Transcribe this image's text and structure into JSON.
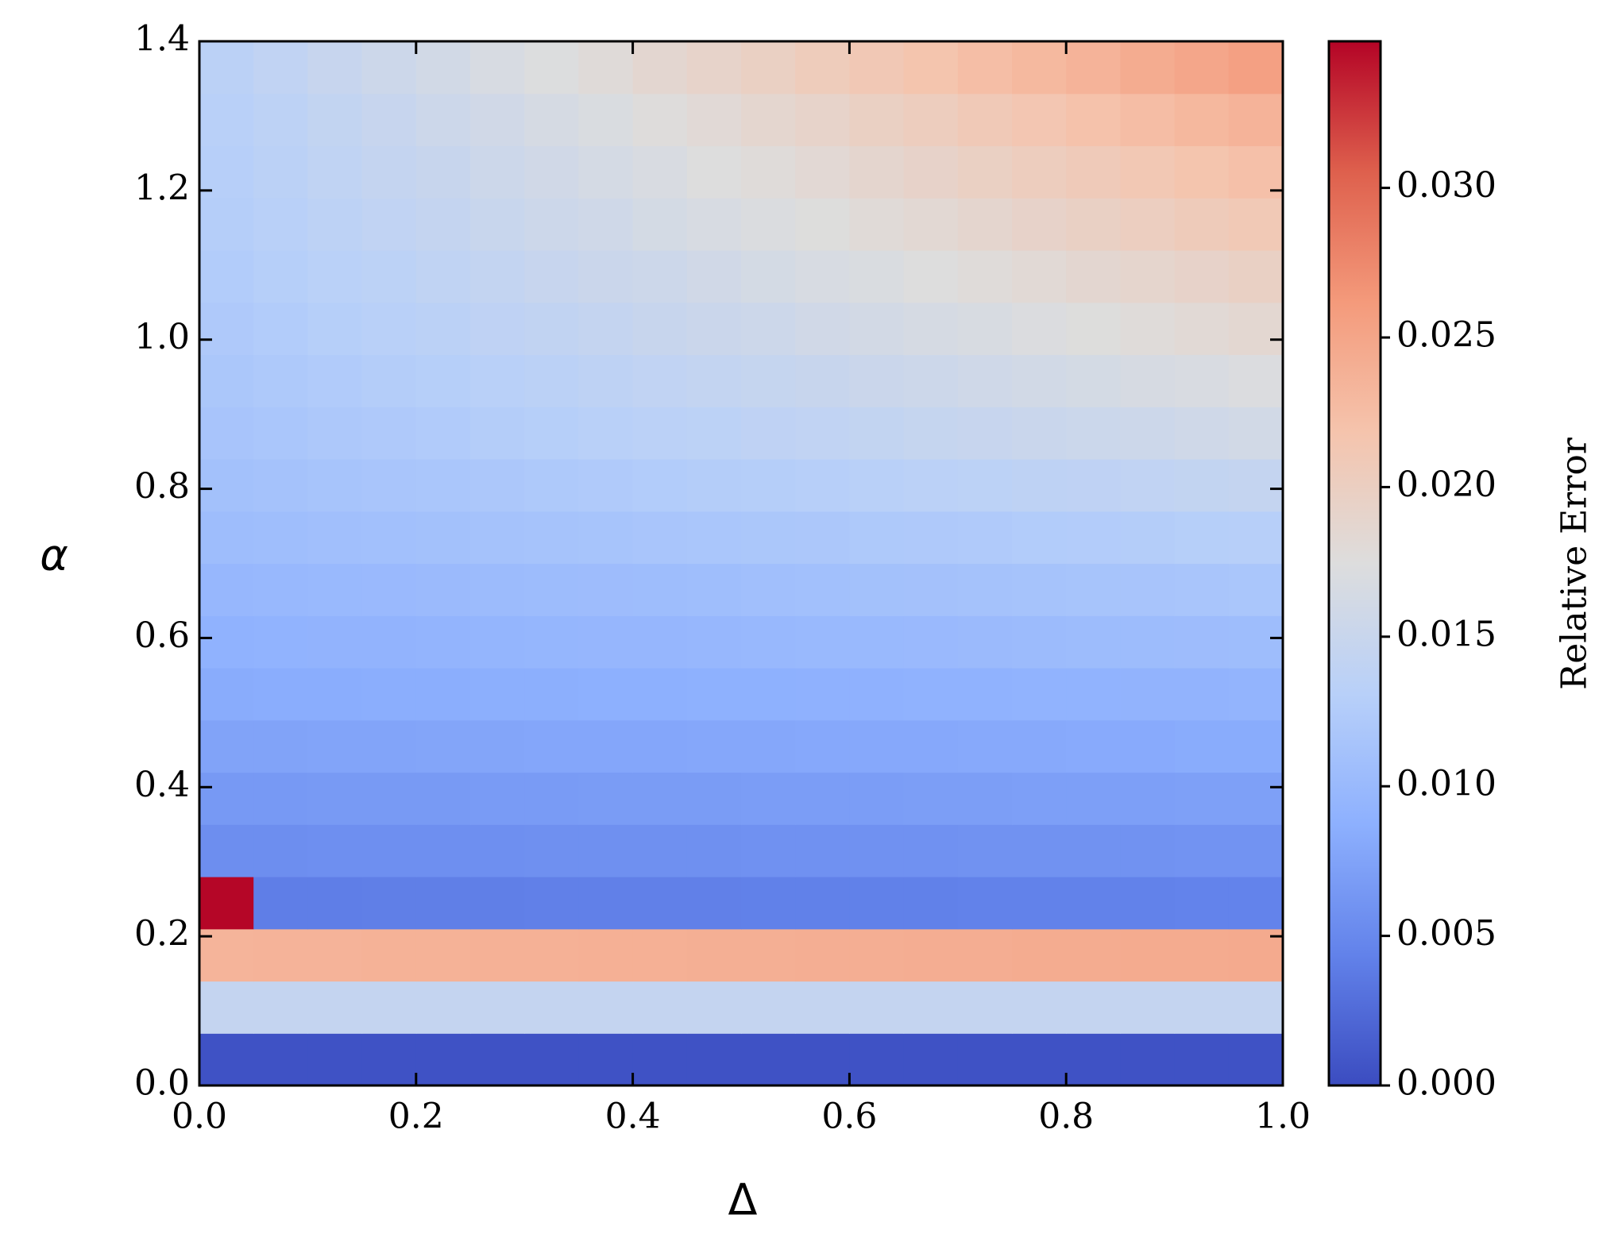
{
  "chart_data": {
    "type": "heatmap",
    "x_label": "Δ",
    "y_label": "α",
    "colorbar_label": "Relative Error",
    "colormap": "coolwarm",
    "xlim": [
      0,
      1
    ],
    "ylim": [
      0,
      1.4
    ],
    "xticks": [
      {
        "value": 0,
        "label": "0.0"
      },
      0.2,
      0.4,
      0.6,
      0.8,
      {
        "value": 1,
        "label": "1.0"
      }
    ],
    "yticks": [
      {
        "value": 0,
        "label": "0.0"
      },
      0.2,
      0.4,
      0.6,
      0.8,
      {
        "value": 1,
        "label": "1.0"
      },
      1.2,
      1.4
    ],
    "clim": [
      0,
      0.0349
    ],
    "cticks": [
      {
        "value": 0,
        "label": "0.000"
      },
      {
        "value": 0.005,
        "label": "0.005"
      },
      {
        "value": 0.01,
        "label": "0.010"
      },
      {
        "value": 0.015,
        "label": "0.015"
      },
      {
        "value": 0.02,
        "label": "0.020"
      },
      {
        "value": 0.025,
        "label": "0.025"
      },
      {
        "value": 0.03,
        "label": "0.030"
      }
    ],
    "x_edges": [
      0,
      0.05,
      0.1,
      0.15,
      0.2,
      0.25,
      0.3,
      0.35,
      0.4,
      0.45,
      0.5,
      0.55,
      0.6,
      0.65,
      0.7,
      0.75,
      0.8,
      0.85,
      0.9,
      0.95,
      1
    ],
    "y_edges": [
      0,
      0.07,
      0.14,
      0.21,
      0.28,
      0.35,
      0.42,
      0.49,
      0.56,
      0.63,
      0.7,
      0.77,
      0.84,
      0.91,
      0.98,
      1.05,
      1.12,
      1.19,
      1.26,
      1.33,
      1.4
    ],
    "z": [
      [
        0.0005,
        0.0005,
        0.0005,
        0.0005,
        0.0005,
        0.0005,
        0.0005,
        0.0005,
        0.0005,
        0.0005,
        0.0005,
        0.0005,
        0.0005,
        0.0005,
        0.0005,
        0.0005,
        0.0005,
        0.0005,
        0.0005,
        0.0005
      ],
      [
        0.0145,
        0.0145,
        0.0145,
        0.0145,
        0.0145,
        0.0145,
        0.0145,
        0.0145,
        0.0145,
        0.0145,
        0.0145,
        0.0145,
        0.0145,
        0.0145,
        0.0145,
        0.0145,
        0.0145,
        0.0145,
        0.0145,
        0.0145
      ],
      [
        0.0235,
        0.0236,
        0.0236,
        0.0237,
        0.0237,
        0.0238,
        0.0238,
        0.0239,
        0.0239,
        0.024,
        0.024,
        0.0241,
        0.0241,
        0.0242,
        0.0242,
        0.0243,
        0.0243,
        0.0244,
        0.0244,
        0.0245
      ],
      [
        0.0348,
        0.004,
        0.004,
        0.0041,
        0.0041,
        0.0041,
        0.0042,
        0.0042,
        0.0042,
        0.0042,
        0.0043,
        0.0043,
        0.0043,
        0.0043,
        0.0044,
        0.0044,
        0.0044,
        0.0044,
        0.0045,
        0.0045
      ],
      [
        0.0055,
        0.0055,
        0.0056,
        0.0056,
        0.0056,
        0.0056,
        0.0057,
        0.0057,
        0.0057,
        0.0057,
        0.0058,
        0.0058,
        0.0058,
        0.0058,
        0.0059,
        0.0059,
        0.0059,
        0.0059,
        0.006,
        0.006
      ],
      [
        0.0065,
        0.0065,
        0.0066,
        0.0066,
        0.0066,
        0.0067,
        0.0067,
        0.0068,
        0.0068,
        0.0068,
        0.0069,
        0.0069,
        0.0069,
        0.007,
        0.007,
        0.0071,
        0.0071,
        0.0071,
        0.0072,
        0.0072
      ],
      [
        0.0075,
        0.0075,
        0.0076,
        0.0076,
        0.0077,
        0.0077,
        0.0078,
        0.0078,
        0.0078,
        0.0079,
        0.0079,
        0.008,
        0.008,
        0.008,
        0.0081,
        0.0081,
        0.0082,
        0.0082,
        0.0083,
        0.0083
      ],
      [
        0.0083,
        0.0084,
        0.0084,
        0.0085,
        0.0085,
        0.0086,
        0.0086,
        0.0087,
        0.0087,
        0.0088,
        0.0088,
        0.0089,
        0.0089,
        0.009,
        0.009,
        0.0091,
        0.0091,
        0.0092,
        0.0092,
        0.0093
      ],
      [
        0.009,
        0.0091,
        0.0092,
        0.0092,
        0.0093,
        0.0094,
        0.0095,
        0.0096,
        0.0096,
        0.0097,
        0.0098,
        0.0099,
        0.0099,
        0.01,
        0.0101,
        0.0102,
        0.0103,
        0.0103,
        0.0104,
        0.0105
      ],
      [
        0.0097,
        0.0098,
        0.0099,
        0.01,
        0.0101,
        0.0102,
        0.0103,
        0.0104,
        0.0105,
        0.0106,
        0.0108,
        0.0109,
        0.011,
        0.0111,
        0.0112,
        0.0113,
        0.0114,
        0.0115,
        0.0116,
        0.0117
      ],
      [
        0.0105,
        0.0106,
        0.0108,
        0.0109,
        0.011,
        0.0112,
        0.0113,
        0.0114,
        0.0116,
        0.0117,
        0.0118,
        0.0119,
        0.0121,
        0.0122,
        0.0123,
        0.0125,
        0.0126,
        0.0127,
        0.0129,
        0.013
      ],
      [
        0.011,
        0.0112,
        0.0114,
        0.0116,
        0.0117,
        0.0119,
        0.0121,
        0.0123,
        0.0125,
        0.0127,
        0.0128,
        0.013,
        0.0132,
        0.0134,
        0.0136,
        0.0138,
        0.0139,
        0.0141,
        0.0143,
        0.0145
      ],
      [
        0.0115,
        0.0117,
        0.012,
        0.0122,
        0.0124,
        0.0127,
        0.0129,
        0.0132,
        0.0134,
        0.0136,
        0.0139,
        0.0141,
        0.0143,
        0.0146,
        0.0148,
        0.0151,
        0.0153,
        0.0155,
        0.0158,
        0.016
      ],
      [
        0.0118,
        0.0121,
        0.0124,
        0.0127,
        0.0129,
        0.0132,
        0.0135,
        0.0138,
        0.0141,
        0.0144,
        0.0146,
        0.0149,
        0.0152,
        0.0155,
        0.0158,
        0.016,
        0.0163,
        0.0166,
        0.0169,
        0.0172
      ],
      [
        0.0122,
        0.0125,
        0.0129,
        0.0132,
        0.0135,
        0.0139,
        0.0142,
        0.0145,
        0.0149,
        0.0152,
        0.0155,
        0.0159,
        0.0162,
        0.0165,
        0.0168,
        0.0172,
        0.0175,
        0.0178,
        0.0182,
        0.0185
      ],
      [
        0.0125,
        0.0129,
        0.0133,
        0.0136,
        0.014,
        0.0144,
        0.0148,
        0.0152,
        0.0155,
        0.0159,
        0.0163,
        0.0167,
        0.017,
        0.0174,
        0.0178,
        0.0182,
        0.0186,
        0.0189,
        0.0193,
        0.0197
      ],
      [
        0.0128,
        0.0132,
        0.0137,
        0.0141,
        0.0145,
        0.015,
        0.0154,
        0.0158,
        0.0163,
        0.0167,
        0.0171,
        0.0175,
        0.018,
        0.0184,
        0.0188,
        0.0193,
        0.0197,
        0.0201,
        0.0206,
        0.021
      ],
      [
        0.013,
        0.0135,
        0.014,
        0.0145,
        0.0149,
        0.0154,
        0.0159,
        0.0164,
        0.0169,
        0.0174,
        0.0178,
        0.0183,
        0.0188,
        0.0193,
        0.0198,
        0.0203,
        0.0207,
        0.0212,
        0.0217,
        0.0222
      ],
      [
        0.0132,
        0.0137,
        0.0143,
        0.0148,
        0.0154,
        0.0159,
        0.0165,
        0.017,
        0.0176,
        0.0181,
        0.0187,
        0.0192,
        0.0198,
        0.0203,
        0.0209,
        0.0214,
        0.022,
        0.0225,
        0.0231,
        0.0236
      ],
      [
        0.0135,
        0.0141,
        0.0148,
        0.0154,
        0.016,
        0.0167,
        0.0173,
        0.0179,
        0.0186,
        0.0192,
        0.0198,
        0.0205,
        0.0211,
        0.0217,
        0.0224,
        0.023,
        0.0236,
        0.0243,
        0.0249,
        0.0255
      ]
    ]
  }
}
